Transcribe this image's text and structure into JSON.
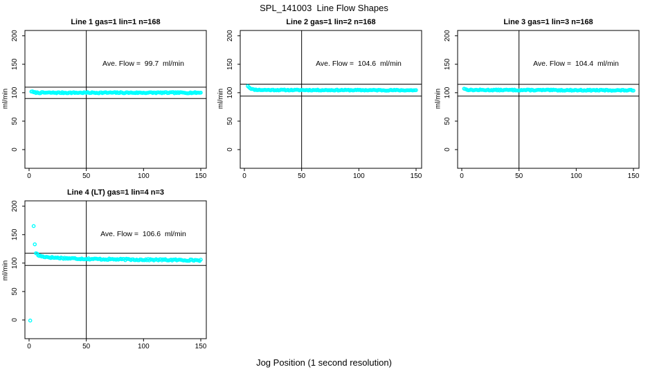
{
  "title": "SPL_141003  Line Flow Shapes",
  "xlabel": "Jog Position (1 second resolution)",
  "colors": {
    "points": "#00FFFF",
    "axis": "#000000",
    "background": "#FFFFFF"
  },
  "chart_data": [
    {
      "type": "scatter",
      "title": "Line 1 gas=1 lin=1 n=168",
      "line": 1,
      "gas": 1,
      "lin": 1,
      "n": 168,
      "ave_flow_ml_min": 99.7,
      "annotation": "Ave. Flow =  99.7  ml/min",
      "ylabel": "ml/min",
      "x_ticks": [
        0,
        50,
        100,
        150
      ],
      "y_ticks": [
        0,
        50,
        100,
        150,
        200
      ],
      "xlim": [
        -4,
        155
      ],
      "ylim": [
        -33,
        209
      ],
      "ref_lines": [
        109.7,
        89.7
      ],
      "vline_x": 50,
      "annotation_at": [
        100,
        150
      ],
      "grid": false,
      "series": {
        "x_start": 2,
        "x_end": 150,
        "step": 1,
        "anchors": [
          [
            2,
            102.5
          ],
          [
            4,
            100.5
          ],
          [
            8,
            100
          ],
          [
            150,
            100
          ]
        ],
        "noise": 1.0,
        "seed": 7,
        "outliers": []
      }
    },
    {
      "type": "scatter",
      "title": "Line 2 gas=1 lin=2 n=168",
      "line": 2,
      "gas": 1,
      "lin": 2,
      "n": 168,
      "ave_flow_ml_min": 104.6,
      "annotation": "Ave. Flow =  104.6  ml/min",
      "ylabel": "ml/min",
      "x_ticks": [
        0,
        50,
        100,
        150
      ],
      "y_ticks": [
        0,
        50,
        100,
        150,
        200
      ],
      "xlim": [
        -4,
        155
      ],
      "ylim": [
        -33,
        209
      ],
      "ref_lines": [
        115.1,
        94.1
      ],
      "vline_x": 50,
      "annotation_at": [
        100,
        150
      ],
      "grid": false,
      "series": {
        "x_start": 3,
        "x_end": 150,
        "step": 1,
        "anchors": [
          [
            3,
            112
          ],
          [
            5,
            108
          ],
          [
            8,
            105.5
          ],
          [
            15,
            104.8
          ],
          [
            150,
            104.3
          ]
        ],
        "noise": 0.8,
        "seed": 11,
        "outliers": []
      }
    },
    {
      "type": "scatter",
      "title": "Line 3 gas=1 lin=3 n=168",
      "line": 3,
      "gas": 1,
      "lin": 3,
      "n": 168,
      "ave_flow_ml_min": 104.4,
      "annotation": "Ave. Flow =  104.4  ml/min",
      "ylabel": "ml/min",
      "x_ticks": [
        0,
        50,
        100,
        150
      ],
      "y_ticks": [
        0,
        50,
        100,
        150,
        200
      ],
      "xlim": [
        -4,
        155
      ],
      "ylim": [
        -33,
        209
      ],
      "ref_lines": [
        114.8,
        94.0
      ],
      "vline_x": 50,
      "annotation_at": [
        100,
        150
      ],
      "grid": false,
      "series": {
        "x_start": 2,
        "x_end": 150,
        "step": 1,
        "anchors": [
          [
            2,
            107.5
          ],
          [
            4,
            105.5
          ],
          [
            8,
            104.8
          ],
          [
            150,
            104.2
          ]
        ],
        "noise": 0.9,
        "seed": 13,
        "outliers": []
      }
    },
    {
      "type": "scatter",
      "title": "Line 4 (LT) gas=1 lin=4 n=3",
      "line": 4,
      "line_note": "LT",
      "gas": 1,
      "lin": 4,
      "n": 3,
      "ave_flow_ml_min": 106.6,
      "annotation": "Ave. Flow =  106.6  ml/min",
      "ylabel": "ml/min",
      "x_ticks": [
        0,
        50,
        100,
        150
      ],
      "y_ticks": [
        0,
        50,
        100,
        150,
        200
      ],
      "xlim": [
        -4,
        155
      ],
      "ylim": [
        -33,
        209
      ],
      "ref_lines": [
        117.3,
        95.9
      ],
      "vline_x": 50,
      "annotation_at": [
        100,
        150
      ],
      "grid": false,
      "series": {
        "x_start": 6,
        "x_end": 150,
        "step": 1,
        "anchors": [
          [
            6,
            118
          ],
          [
            8,
            113.5
          ],
          [
            12,
            111.5
          ],
          [
            20,
            109.8
          ],
          [
            35,
            108.3
          ],
          [
            60,
            107
          ],
          [
            100,
            106
          ],
          [
            150,
            105
          ]
        ],
        "noise": 1.3,
        "seed": 17,
        "outliers": [
          [
            1,
            -1
          ],
          [
            4,
            165
          ],
          [
            5,
            133
          ]
        ]
      }
    }
  ]
}
